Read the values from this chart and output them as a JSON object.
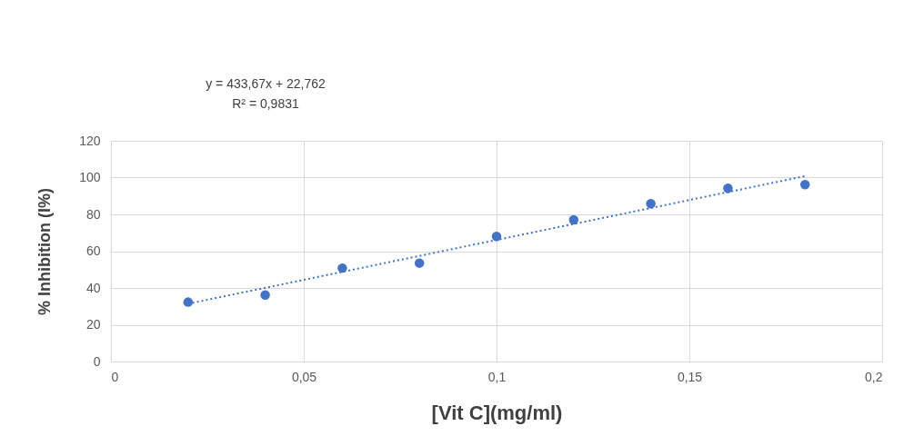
{
  "chart_data": {
    "type": "scatter",
    "xlabel": "[Vit C](mg/ml)",
    "ylabel": "% Inhibition (I%)",
    "annotations": [
      "y = 433,67x + 22,762",
      "R² = 0,9831"
    ],
    "x": [
      0.02,
      0.04,
      0.06,
      0.08,
      0.1,
      0.12,
      0.14,
      0.16,
      0.18
    ],
    "series": [
      {
        "color": "#4472c4",
        "marker": "circle",
        "values": [
          32.3,
          36.2,
          50.8,
          53.5,
          68,
          77,
          85.8,
          94.2,
          96.2
        ]
      },
      {
        "type": "line",
        "color": "#4472c4",
        "line_style": "dotted",
        "marker": "none",
        "x": [
          0.02,
          0.18
        ],
        "values": [
          31.4,
          100.8
        ]
      }
    ],
    "xlim": [
      0,
      0.2
    ],
    "xticks": [
      0,
      {
        "value": 0.05,
        "label": "0,05"
      },
      {
        "value": 0.1,
        "label": "0,1"
      },
      {
        "value": 0.15,
        "label": "0,15"
      },
      {
        "value": 0.2,
        "label": "0,2"
      }
    ],
    "ylim": [
      0,
      120
    ],
    "yticks": [
      0,
      20,
      40,
      60,
      80,
      100,
      120
    ],
    "grid": true
  }
}
